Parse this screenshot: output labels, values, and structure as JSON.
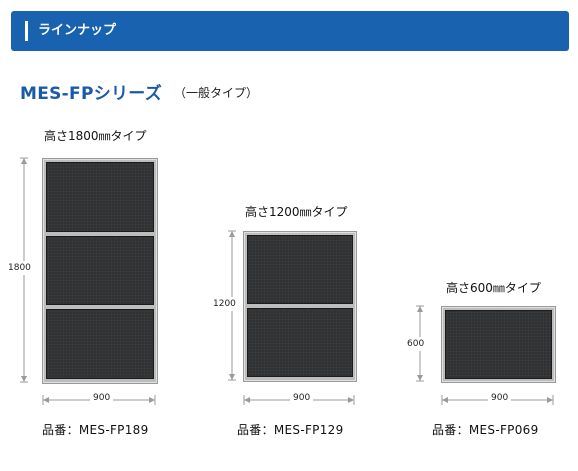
{
  "header": {
    "title": "ラインナップ"
  },
  "series": {
    "title": "MES-FPシリーズ",
    "subtitle": "（一般タイプ）"
  },
  "products": [
    {
      "type_label": "高さ1800㎜タイプ",
      "height_label": "1800",
      "width_label": "900",
      "product_label": "品番：MES-FP189",
      "panels": 3
    },
    {
      "type_label": "高さ1200㎜タイプ",
      "height_label": "1200",
      "width_label": "900",
      "product_label": "品番：MES-FP129",
      "panels": 2
    },
    {
      "type_label": "高さ600㎜タイプ",
      "height_label": "600",
      "width_label": "900",
      "product_label": "品番：MES-FP069",
      "panels": 1
    }
  ]
}
